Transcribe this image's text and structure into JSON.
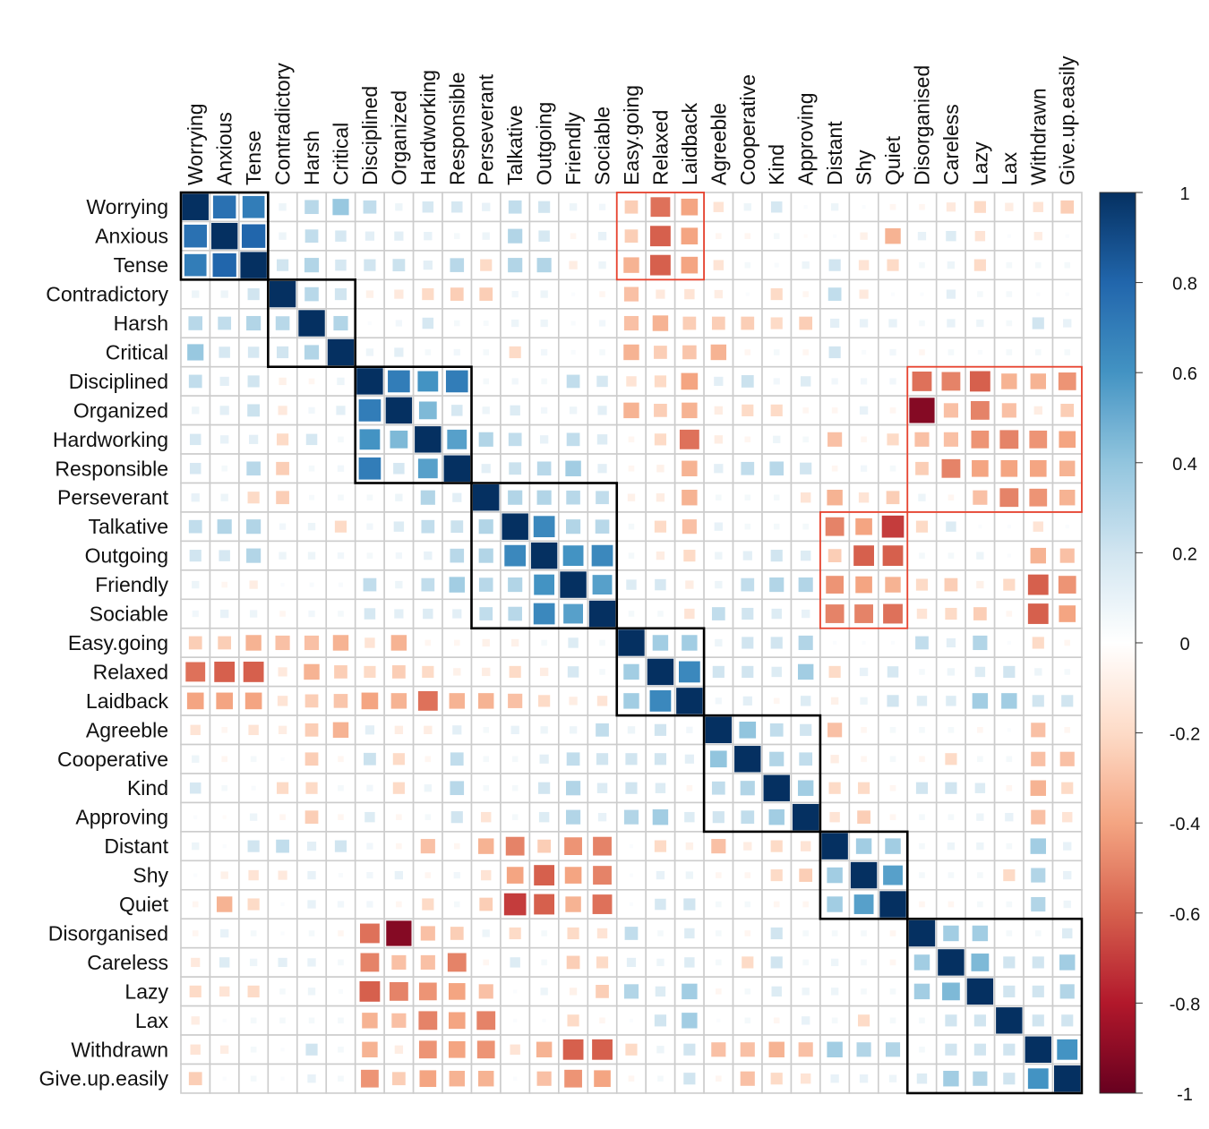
{
  "chart_data": {
    "type": "heatmap",
    "variables": [
      "Worrying",
      "Anxious",
      "Tense",
      "Contradictory",
      "Harsh",
      "Critical",
      "Disciplined",
      "Organized",
      "Hardworking",
      "Responsible",
      "Perseverant",
      "Talkative",
      "Outgoing",
      "Friendly",
      "Sociable",
      "Easy.going",
      "Relaxed",
      "Laidback",
      "Agreeble",
      "Cooperative",
      "Kind",
      "Approving",
      "Distant",
      "Shy",
      "Quiet",
      "Disorganised",
      "Careless",
      "Lazy",
      "Lax",
      "Withdrawn",
      "Give.up.easily"
    ],
    "matrix": [
      [
        1,
        0.75,
        0.7,
        0.08,
        0.28,
        0.38,
        0.25,
        0.08,
        0.18,
        0.18,
        0.1,
        0.25,
        0.2,
        0.08,
        0.06,
        -0.25,
        -0.55,
        -0.4,
        -0.15,
        0.08,
        0.18,
        0.02,
        0.08,
        0.02,
        -0.05,
        -0.05,
        -0.12,
        -0.2,
        -0.1,
        -0.15,
        -0.25
      ],
      [
        0.75,
        1,
        0.8,
        0.08,
        0.25,
        0.18,
        0.12,
        0.12,
        0.1,
        0.05,
        0.08,
        0.3,
        0.18,
        -0.05,
        0.1,
        -0.25,
        -0.6,
        -0.4,
        -0.05,
        -0.05,
        0.05,
        -0.02,
        0.02,
        -0.08,
        -0.35,
        0.1,
        0.15,
        -0.15,
        0.02,
        -0.1,
        0.02
      ],
      [
        0.7,
        0.8,
        1,
        0.2,
        0.3,
        0.18,
        0.2,
        0.22,
        0.12,
        0.28,
        -0.2,
        0.3,
        0.3,
        -0.1,
        0.08,
        -0.35,
        -0.6,
        -0.4,
        -0.15,
        0.05,
        0.03,
        0.08,
        0.2,
        -0.15,
        -0.2,
        0.05,
        0.08,
        -0.2,
        0.05,
        0.05,
        0.05
      ],
      [
        0.08,
        0.08,
        0.2,
        1,
        0.28,
        0.2,
        -0.08,
        -0.12,
        -0.2,
        -0.25,
        -0.25,
        0.06,
        0.08,
        0.02,
        -0.05,
        -0.3,
        -0.12,
        -0.15,
        -0.1,
        0.02,
        -0.2,
        -0.05,
        0.25,
        -0.12,
        0.02,
        0.02,
        0.12,
        0.05,
        0.05,
        0.02,
        0.02
      ],
      [
        0.28,
        0.25,
        0.3,
        0.28,
        1,
        0.3,
        0.02,
        0.06,
        0.18,
        0.05,
        0.04,
        0.08,
        0.08,
        0.03,
        0.06,
        -0.3,
        -0.35,
        -0.25,
        -0.25,
        -0.25,
        -0.2,
        -0.25,
        0.12,
        0.1,
        0.1,
        0.05,
        0.1,
        0.08,
        0.05,
        0.2,
        0.1
      ],
      [
        0.38,
        0.18,
        0.18,
        0.2,
        0.3,
        1,
        0.08,
        0.12,
        0.05,
        0.06,
        0.05,
        -0.2,
        0.06,
        0.03,
        0.05,
        -0.35,
        -0.25,
        -0.28,
        -0.35,
        -0.05,
        0.05,
        -0.05,
        0.2,
        0.03,
        0.06,
        -0.05,
        0.05,
        0.03,
        0.05,
        0.05,
        0.05
      ],
      [
        0.25,
        0.12,
        0.2,
        -0.08,
        -0.05,
        0.08,
        1,
        0.7,
        0.6,
        0.7,
        0.05,
        0.06,
        0.05,
        0.25,
        0.18,
        -0.15,
        -0.2,
        -0.4,
        0.12,
        0.22,
        0.06,
        0.15,
        0.06,
        0.06,
        0.06,
        -0.55,
        -0.5,
        -0.6,
        -0.35,
        -0.35,
        -0.45
      ],
      [
        0.08,
        0.12,
        0.22,
        -0.12,
        0.06,
        0.12,
        0.7,
        1,
        0.45,
        0.18,
        0.08,
        0.15,
        0.06,
        0.08,
        0.12,
        -0.35,
        -0.25,
        -0.35,
        -0.1,
        -0.2,
        -0.2,
        -0.05,
        -0.05,
        0.1,
        -0.05,
        -0.92,
        -0.3,
        -0.5,
        -0.3,
        -0.1,
        -0.25
      ],
      [
        0.18,
        0.1,
        0.12,
        -0.2,
        0.18,
        0.05,
        0.6,
        0.45,
        1,
        0.55,
        0.3,
        0.25,
        0.1,
        0.25,
        0.15,
        -0.05,
        -0.2,
        -0.55,
        -0.1,
        -0.05,
        0.08,
        0.05,
        -0.3,
        -0.05,
        -0.2,
        -0.3,
        -0.3,
        -0.45,
        -0.5,
        -0.45,
        -0.4
      ],
      [
        0.18,
        0.05,
        0.28,
        -0.25,
        0.05,
        0.06,
        0.7,
        0.18,
        0.55,
        1,
        0.12,
        0.22,
        0.28,
        0.35,
        0.12,
        -0.05,
        -0.08,
        -0.35,
        0.12,
        0.25,
        0.28,
        0.2,
        -0.05,
        0.06,
        0.05,
        -0.25,
        -0.5,
        -0.4,
        -0.4,
        -0.4,
        -0.35
      ],
      [
        0.1,
        0.08,
        -0.2,
        -0.25,
        0.04,
        0.05,
        0.05,
        0.08,
        0.3,
        0.12,
        1,
        0.3,
        0.3,
        0.28,
        0.25,
        -0.08,
        -0.1,
        -0.35,
        0.05,
        0.05,
        0.05,
        -0.15,
        -0.35,
        -0.15,
        -0.25,
        0.08,
        -0.05,
        -0.3,
        -0.5,
        -0.45,
        -0.35
      ],
      [
        0.25,
        0.3,
        0.3,
        0.06,
        0.08,
        -0.2,
        0.06,
        0.15,
        0.25,
        0.22,
        0.3,
        1,
        0.65,
        0.3,
        0.28,
        0.05,
        -0.2,
        -0.3,
        0.1,
        0.05,
        0.05,
        0.05,
        -0.5,
        -0.4,
        -0.7,
        -0.2,
        0.15,
        0.02,
        0.02,
        -0.15,
        0.02
      ],
      [
        0.2,
        0.18,
        0.3,
        0.08,
        0.08,
        0.06,
        0.05,
        0.06,
        0.1,
        0.28,
        0.3,
        0.65,
        1,
        0.6,
        0.65,
        0.05,
        -0.1,
        -0.2,
        0.08,
        0.12,
        0.2,
        0.15,
        -0.25,
        -0.6,
        -0.6,
        0.05,
        0.05,
        0.08,
        0.02,
        -0.35,
        -0.3
      ],
      [
        0.08,
        -0.05,
        -0.1,
        0.02,
        0.03,
        0.03,
        0.25,
        0.08,
        0.25,
        0.35,
        0.28,
        0.3,
        0.6,
        1,
        0.55,
        0.15,
        0.18,
        -0.1,
        0.08,
        0.25,
        0.3,
        0.3,
        -0.45,
        -0.4,
        -0.35,
        -0.2,
        -0.25,
        -0.08,
        -0.2,
        -0.6,
        -0.45
      ],
      [
        0.06,
        0.1,
        0.08,
        -0.05,
        0.06,
        0.05,
        0.18,
        0.12,
        0.15,
        0.12,
        0.25,
        0.28,
        0.65,
        0.55,
        1,
        0.05,
        0.05,
        -0.15,
        0.25,
        0.2,
        0.15,
        0.1,
        -0.5,
        -0.5,
        -0.55,
        -0.15,
        -0.2,
        -0.25,
        -0.05,
        -0.6,
        -0.4
      ],
      [
        -0.25,
        -0.25,
        -0.35,
        -0.3,
        -0.3,
        -0.35,
        -0.15,
        -0.35,
        -0.05,
        -0.05,
        -0.08,
        -0.08,
        0.05,
        0.15,
        0.05,
        1,
        0.35,
        0.35,
        0.08,
        0.2,
        0.2,
        0.3,
        0.02,
        0.02,
        0.02,
        0.25,
        0.12,
        0.3,
        0.02,
        -0.2,
        -0.05
      ],
      [
        -0.55,
        -0.6,
        -0.6,
        -0.12,
        -0.35,
        -0.25,
        -0.2,
        -0.25,
        -0.2,
        -0.08,
        -0.1,
        -0.2,
        -0.1,
        0.18,
        0.05,
        0.35,
        1,
        0.65,
        0.2,
        0.2,
        0.15,
        0.35,
        -0.2,
        0.1,
        0.18,
        0.05,
        0.08,
        0.15,
        0.2,
        0.08,
        0.05
      ],
      [
        -0.4,
        -0.4,
        -0.4,
        -0.15,
        -0.25,
        -0.28,
        -0.4,
        -0.35,
        -0.55,
        -0.35,
        -0.35,
        -0.3,
        -0.2,
        -0.1,
        -0.15,
        0.35,
        0.65,
        1,
        0.06,
        0.12,
        -0.05,
        0.15,
        -0.08,
        0.08,
        0.2,
        0.15,
        0.15,
        0.35,
        0.35,
        0.2,
        0.2
      ],
      [
        -0.15,
        -0.05,
        -0.15,
        -0.1,
        -0.25,
        -0.35,
        0.12,
        -0.1,
        -0.1,
        0.12,
        0.05,
        0.1,
        0.08,
        0.08,
        0.25,
        0.08,
        0.2,
        0.06,
        1,
        0.4,
        0.25,
        0.2,
        -0.3,
        -0.05,
        0.05,
        0.05,
        0.05,
        -0.05,
        0.02,
        -0.3,
        -0.05
      ],
      [
        0.08,
        -0.05,
        0.05,
        0.02,
        -0.25,
        -0.05,
        0.22,
        -0.2,
        -0.05,
        0.25,
        0.05,
        0.05,
        0.12,
        0.25,
        0.2,
        0.2,
        0.2,
        0.12,
        0.4,
        1,
        0.3,
        0.25,
        -0.1,
        -0.05,
        0.05,
        -0.05,
        -0.2,
        0.05,
        0.05,
        -0.3,
        -0.3
      ],
      [
        0.18,
        0.05,
        0.03,
        -0.2,
        -0.2,
        0.05,
        0.06,
        -0.2,
        0.08,
        0.28,
        0.05,
        0.05,
        0.2,
        0.3,
        0.15,
        0.2,
        0.15,
        -0.05,
        0.25,
        0.3,
        1,
        0.35,
        -0.2,
        -0.2,
        -0.05,
        0.2,
        0.2,
        0.15,
        -0.05,
        -0.35,
        -0.2
      ],
      [
        0.02,
        -0.02,
        0.08,
        -0.05,
        -0.25,
        -0.05,
        0.15,
        -0.05,
        0.05,
        0.2,
        -0.15,
        0.05,
        0.15,
        0.3,
        0.1,
        0.3,
        0.35,
        0.15,
        0.2,
        0.25,
        0.35,
        1,
        -0.15,
        -0.25,
        -0.05,
        0.05,
        0.05,
        0.08,
        0.1,
        -0.3,
        -0.15
      ],
      [
        0.08,
        0.02,
        0.2,
        0.25,
        0.12,
        0.2,
        0.06,
        -0.05,
        -0.3,
        -0.05,
        -0.35,
        -0.5,
        -0.25,
        -0.45,
        -0.5,
        0.02,
        -0.2,
        -0.08,
        -0.3,
        -0.1,
        -0.2,
        -0.15,
        1,
        0.35,
        0.35,
        0.05,
        0.08,
        0.08,
        0.05,
        0.35,
        0.1
      ],
      [
        0.02,
        -0.08,
        -0.15,
        -0.12,
        0.1,
        0.03,
        0.06,
        0.1,
        -0.05,
        0.06,
        -0.15,
        -0.4,
        -0.6,
        -0.4,
        -0.5,
        0.02,
        0.1,
        0.08,
        -0.05,
        -0.05,
        -0.2,
        -0.25,
        0.35,
        1,
        0.55,
        0.05,
        0.05,
        0.05,
        -0.2,
        0.3,
        0.1
      ],
      [
        -0.05,
        -0.35,
        -0.2,
        0.02,
        0.1,
        0.06,
        0.06,
        -0.05,
        -0.2,
        0.05,
        -0.25,
        -0.7,
        -0.6,
        -0.35,
        -0.55,
        0.02,
        0.18,
        0.2,
        0.05,
        0.05,
        -0.05,
        -0.05,
        0.35,
        0.55,
        1,
        -0.05,
        -0.05,
        0.05,
        0.05,
        0.3,
        0.08
      ],
      [
        -0.05,
        0.1,
        0.05,
        0.02,
        0.05,
        -0.05,
        -0.55,
        -0.92,
        -0.3,
        -0.25,
        0.08,
        -0.2,
        0.05,
        -0.2,
        -0.15,
        0.25,
        0.05,
        0.15,
        0.05,
        -0.05,
        0.2,
        0.05,
        0.05,
        0.05,
        -0.05,
        1,
        0.35,
        0.35,
        0.05,
        0.05,
        0.15
      ],
      [
        -0.12,
        0.15,
        0.08,
        0.12,
        0.1,
        0.05,
        -0.5,
        -0.3,
        -0.3,
        -0.5,
        -0.05,
        0.15,
        0.05,
        -0.25,
        -0.2,
        0.12,
        0.08,
        0.15,
        0.05,
        -0.2,
        0.2,
        0.05,
        0.08,
        0.05,
        -0.05,
        0.35,
        1,
        0.45,
        0.2,
        0.2,
        0.35
      ],
      [
        -0.2,
        -0.15,
        -0.2,
        0.05,
        0.08,
        0.03,
        -0.6,
        -0.5,
        -0.45,
        -0.4,
        -0.3,
        0.02,
        0.08,
        -0.08,
        -0.25,
        0.3,
        0.15,
        0.35,
        -0.05,
        0.05,
        0.15,
        0.08,
        0.08,
        0.05,
        0.05,
        0.35,
        0.45,
        1,
        0.2,
        0.2,
        0.3
      ],
      [
        -0.1,
        0.02,
        0.05,
        0.05,
        0.05,
        0.05,
        -0.35,
        -0.3,
        -0.5,
        -0.4,
        -0.5,
        0.02,
        0.02,
        -0.2,
        -0.05,
        0.02,
        0.2,
        0.35,
        0.02,
        0.05,
        -0.05,
        0.1,
        0.05,
        -0.2,
        0.05,
        0.05,
        0.2,
        0.2,
        1,
        0.2,
        0.2
      ],
      [
        -0.15,
        -0.1,
        0.05,
        0.02,
        0.2,
        0.05,
        -0.35,
        -0.1,
        -0.45,
        -0.4,
        -0.45,
        -0.15,
        -0.35,
        -0.6,
        -0.6,
        -0.2,
        0.08,
        0.2,
        -0.3,
        -0.3,
        -0.35,
        -0.3,
        0.35,
        0.3,
        0.3,
        0.05,
        0.2,
        0.2,
        0.2,
        1,
        0.6
      ],
      [
        -0.25,
        0.02,
        0.05,
        0.02,
        0.1,
        0.05,
        -0.45,
        -0.25,
        -0.4,
        -0.35,
        -0.35,
        0.02,
        -0.3,
        -0.45,
        -0.4,
        -0.05,
        0.05,
        0.2,
        -0.05,
        -0.3,
        -0.2,
        -0.15,
        0.1,
        0.1,
        0.08,
        0.15,
        0.35,
        0.3,
        0.2,
        0.6,
        1
      ]
    ],
    "legend": {
      "ticks": [
        "1",
        "0.8",
        "0.6",
        "0.4",
        "0.2",
        "0",
        "-0.2",
        "-0.4",
        "-0.6",
        "-0.8",
        "-1"
      ],
      "range": [
        -1,
        1
      ]
    },
    "cluster_boxes": [
      {
        "start": 0,
        "end": 2
      },
      {
        "start": 3,
        "end": 5
      },
      {
        "start": 6,
        "end": 9
      },
      {
        "start": 10,
        "end": 14
      },
      {
        "start": 15,
        "end": 17
      },
      {
        "start": 18,
        "end": 21
      },
      {
        "start": 22,
        "end": 24
      },
      {
        "start": 25,
        "end": 30
      }
    ],
    "highlight_boxes": [
      {
        "rows": [
          0,
          2
        ],
        "cols": [
          15,
          17
        ]
      },
      {
        "rows": [
          6,
          10
        ],
        "cols": [
          25,
          30
        ]
      },
      {
        "rows": [
          11,
          14
        ],
        "cols": [
          22,
          24
        ]
      }
    ],
    "colors": {
      "neg_strong": "#67001f",
      "pos_strong": "#053061",
      "cluster_box": "#000000",
      "highlight_box": "#e8432f",
      "cell_border": "#cccccc"
    }
  }
}
